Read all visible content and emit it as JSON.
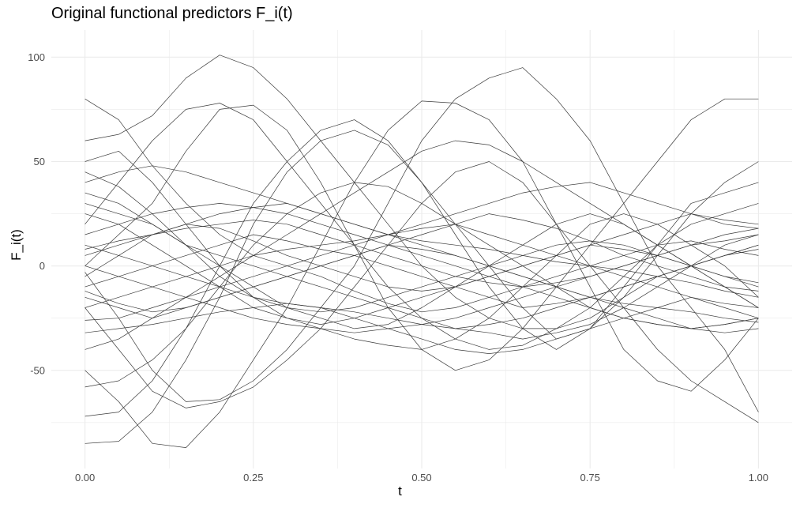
{
  "chart_data": {
    "type": "line",
    "title": "Original functional predictors F_i(t)",
    "xlabel": "t",
    "ylabel": "F_i(t)",
    "xlim": [
      -0.05,
      1.05
    ],
    "ylim": [
      -97,
      113
    ],
    "x_ticks": [
      0.0,
      0.25,
      0.5,
      0.75,
      1.0
    ],
    "x_tick_labels": [
      "0.00",
      "0.25",
      "0.50",
      "0.75",
      "1.00"
    ],
    "y_ticks": [
      -50,
      0,
      50,
      100
    ],
    "y_tick_labels": [
      "-50",
      "0",
      "50",
      "100"
    ],
    "grid": true,
    "legend": "none",
    "line_color": "#3a3a3a",
    "grid_color": "#ebebeb",
    "x": [
      0,
      0.05,
      0.1,
      0.15,
      0.2,
      0.25,
      0.3,
      0.35,
      0.4,
      0.45,
      0.5,
      0.55,
      0.6,
      0.65,
      0.7,
      0.75,
      0.8,
      0.85,
      0.9,
      0.95,
      1.0
    ],
    "series": [
      {
        "values": [
          80,
          70,
          48,
          30,
          15,
          5,
          0,
          -5,
          -12,
          -18,
          -22,
          -20,
          -15,
          -10,
          -5,
          0,
          5,
          10,
          12,
          8,
          5
        ]
      },
      {
        "values": [
          -85,
          -84,
          -70,
          -45,
          -15,
          20,
          45,
          60,
          65,
          58,
          40,
          20,
          0,
          -20,
          -35,
          -30,
          -15,
          5,
          25,
          40,
          50
        ]
      },
      {
        "values": [
          60,
          63,
          72,
          90,
          101,
          95,
          80,
          60,
          40,
          20,
          0,
          -15,
          -25,
          -30,
          -30,
          -25,
          -15,
          -5,
          0,
          5,
          10
        ]
      },
      {
        "values": [
          -3,
          -25,
          -50,
          -65,
          -64,
          -55,
          -40,
          -20,
          0,
          30,
          60,
          80,
          90,
          95,
          80,
          60,
          30,
          0,
          -20,
          -40,
          -70
        ]
      },
      {
        "values": [
          -20,
          -40,
          -60,
          -68,
          -65,
          -58,
          -45,
          -30,
          -10,
          10,
          30,
          45,
          50,
          40,
          20,
          0,
          -20,
          -40,
          -55,
          -65,
          -75
        ]
      },
      {
        "values": [
          -50,
          -65,
          -85,
          -87,
          -70,
          -45,
          -20,
          10,
          40,
          65,
          79,
          78,
          70,
          50,
          20,
          -10,
          -40,
          -55,
          -60,
          -45,
          -25
        ]
      },
      {
        "values": [
          0,
          15,
          30,
          55,
          75,
          77,
          65,
          40,
          10,
          -20,
          -40,
          -50,
          -45,
          -30,
          -10,
          10,
          30,
          50,
          70,
          80,
          80
        ]
      },
      {
        "values": [
          -72,
          -70,
          -55,
          -30,
          0,
          30,
          50,
          65,
          70,
          60,
          40,
          15,
          -10,
          -30,
          -40,
          -30,
          -10,
          10,
          30,
          35,
          40
        ]
      },
      {
        "values": [
          50,
          55,
          40,
          20,
          0,
          -15,
          -25,
          -30,
          -35,
          -38,
          -40,
          -35,
          -25,
          -10,
          5,
          20,
          25,
          20,
          10,
          0,
          -15
        ]
      },
      {
        "values": [
          20,
          40,
          60,
          75,
          78,
          70,
          50,
          30,
          10,
          -10,
          -25,
          -35,
          -40,
          -38,
          -30,
          -20,
          -5,
          10,
          20,
          25,
          30
        ]
      },
      {
        "values": [
          5,
          10,
          15,
          20,
          25,
          28,
          30,
          25,
          20,
          15,
          10,
          5,
          0,
          -5,
          -10,
          -15,
          -20,
          -25,
          -30,
          -28,
          -25
        ]
      },
      {
        "values": [
          -10,
          -5,
          0,
          5,
          10,
          15,
          12,
          8,
          5,
          0,
          -5,
          -10,
          -15,
          -20,
          -18,
          -15,
          -10,
          -5,
          0,
          5,
          10
        ]
      },
      {
        "values": [
          30,
          25,
          20,
          10,
          0,
          -10,
          -20,
          -25,
          -30,
          -28,
          -20,
          -10,
          0,
          10,
          20,
          25,
          20,
          10,
          0,
          -10,
          -20
        ]
      },
      {
        "values": [
          -26,
          -25,
          -20,
          -15,
          -10,
          -5,
          0,
          5,
          10,
          15,
          20,
          25,
          30,
          35,
          38,
          40,
          35,
          30,
          25,
          20,
          18
        ]
      },
      {
        "values": [
          15,
          20,
          25,
          28,
          30,
          28,
          25,
          20,
          15,
          10,
          5,
          0,
          -5,
          -10,
          -15,
          -20,
          -25,
          -28,
          -30,
          -32,
          -30
        ]
      },
      {
        "values": [
          -15,
          -20,
          -25,
          -20,
          -15,
          -10,
          -5,
          0,
          5,
          10,
          15,
          20,
          25,
          22,
          18,
          12,
          5,
          0,
          -5,
          -10,
          -12
        ]
      },
      {
        "values": [
          45,
          38,
          25,
          10,
          -5,
          -15,
          -20,
          -22,
          -20,
          -15,
          -10,
          -5,
          0,
          5,
          10,
          12,
          10,
          5,
          0,
          -5,
          -8
        ]
      },
      {
        "values": [
          -32,
          -30,
          -28,
          -25,
          -22,
          -20,
          -18,
          -20,
          -25,
          -30,
          -35,
          -40,
          -42,
          -40,
          -35,
          -30,
          -25,
          -20,
          -15,
          -18,
          -20
        ]
      },
      {
        "values": [
          10,
          5,
          0,
          -5,
          -10,
          -15,
          -18,
          -20,
          -22,
          -25,
          -28,
          -30,
          -28,
          -25,
          -20,
          -15,
          -10,
          -5,
          0,
          5,
          8
        ]
      },
      {
        "values": [
          -58,
          -55,
          -45,
          -30,
          -10,
          10,
          25,
          35,
          40,
          38,
          30,
          20,
          10,
          0,
          -10,
          -20,
          -25,
          -28,
          -30,
          -28,
          -25
        ]
      },
      {
        "values": [
          25,
          20,
          10,
          0,
          -10,
          -20,
          -25,
          -28,
          -25,
          -20,
          -15,
          -10,
          -5,
          0,
          5,
          10,
          15,
          20,
          25,
          22,
          20
        ]
      },
      {
        "values": [
          -5,
          5,
          15,
          20,
          18,
          12,
          5,
          0,
          -5,
          -10,
          -12,
          -10,
          -5,
          0,
          5,
          10,
          8,
          5,
          0,
          -5,
          -10
        ]
      },
      {
        "values": [
          40,
          45,
          48,
          45,
          40,
          35,
          30,
          25,
          20,
          15,
          12,
          10,
          8,
          5,
          2,
          0,
          -2,
          -5,
          -8,
          -12,
          -15
        ]
      },
      {
        "values": [
          -20,
          -15,
          -10,
          -5,
          0,
          5,
          8,
          10,
          12,
          15,
          18,
          20,
          15,
          10,
          5,
          0,
          -5,
          -10,
          -15,
          -20,
          -25
        ]
      },
      {
        "values": [
          0,
          -5,
          -10,
          -15,
          -20,
          -25,
          -28,
          -30,
          -32,
          -30,
          -28,
          -25,
          -20,
          -15,
          -10,
          -5,
          0,
          5,
          10,
          15,
          18
        ]
      },
      {
        "values": [
          35,
          30,
          20,
          10,
          5,
          0,
          -5,
          -10,
          -15,
          -20,
          -25,
          -30,
          -32,
          -35,
          -32,
          -28,
          -20,
          -10,
          0,
          10,
          15
        ]
      },
      {
        "values": [
          -40,
          -35,
          -25,
          -15,
          -5,
          5,
          15,
          25,
          35,
          45,
          55,
          60,
          58,
          50,
          40,
          30,
          20,
          10,
          0,
          -10,
          -20
        ]
      },
      {
        "values": [
          8,
          12,
          15,
          18,
          20,
          22,
          20,
          15,
          10,
          5,
          0,
          -5,
          -8,
          -10,
          -8,
          -5,
          0,
          5,
          10,
          12,
          15
        ]
      },
      {
        "values": [
          -12,
          -18,
          -22,
          -20,
          -15,
          -10,
          -5,
          0,
          5,
          10,
          8,
          5,
          0,
          -5,
          -10,
          -15,
          -18,
          -20,
          -22,
          -25,
          -27
        ]
      }
    ]
  }
}
